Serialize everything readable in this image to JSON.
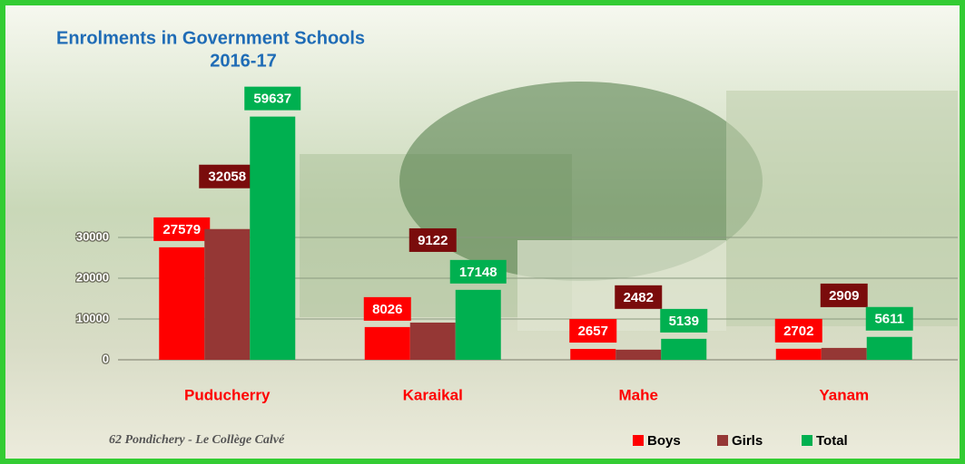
{
  "chart_data": {
    "type": "bar",
    "title": "Enrolments in Government Schools",
    "subtitle": "2016-17",
    "caption": "62  Pondichery -   Le Collège Calvé",
    "categories": [
      "Puducherry",
      "Karaikal",
      "Mahe",
      "Yanam"
    ],
    "series": [
      {
        "name": "Boys",
        "color": "#ff0000",
        "label_color": "#ff0000",
        "values": [
          27579,
          8026,
          2657,
          2702
        ]
      },
      {
        "name": "Girls",
        "color": "#953735",
        "label_color": "#7a0c0c",
        "values": [
          32058,
          9122,
          2482,
          2909
        ]
      },
      {
        "name": "Total",
        "color": "#00b050",
        "label_color": "#00b050",
        "values": [
          59637,
          17148,
          5139,
          5611
        ]
      }
    ],
    "ylim": [
      0,
      70000
    ],
    "yticks": [
      0,
      10000,
      20000,
      30000
    ],
    "grid": true
  }
}
